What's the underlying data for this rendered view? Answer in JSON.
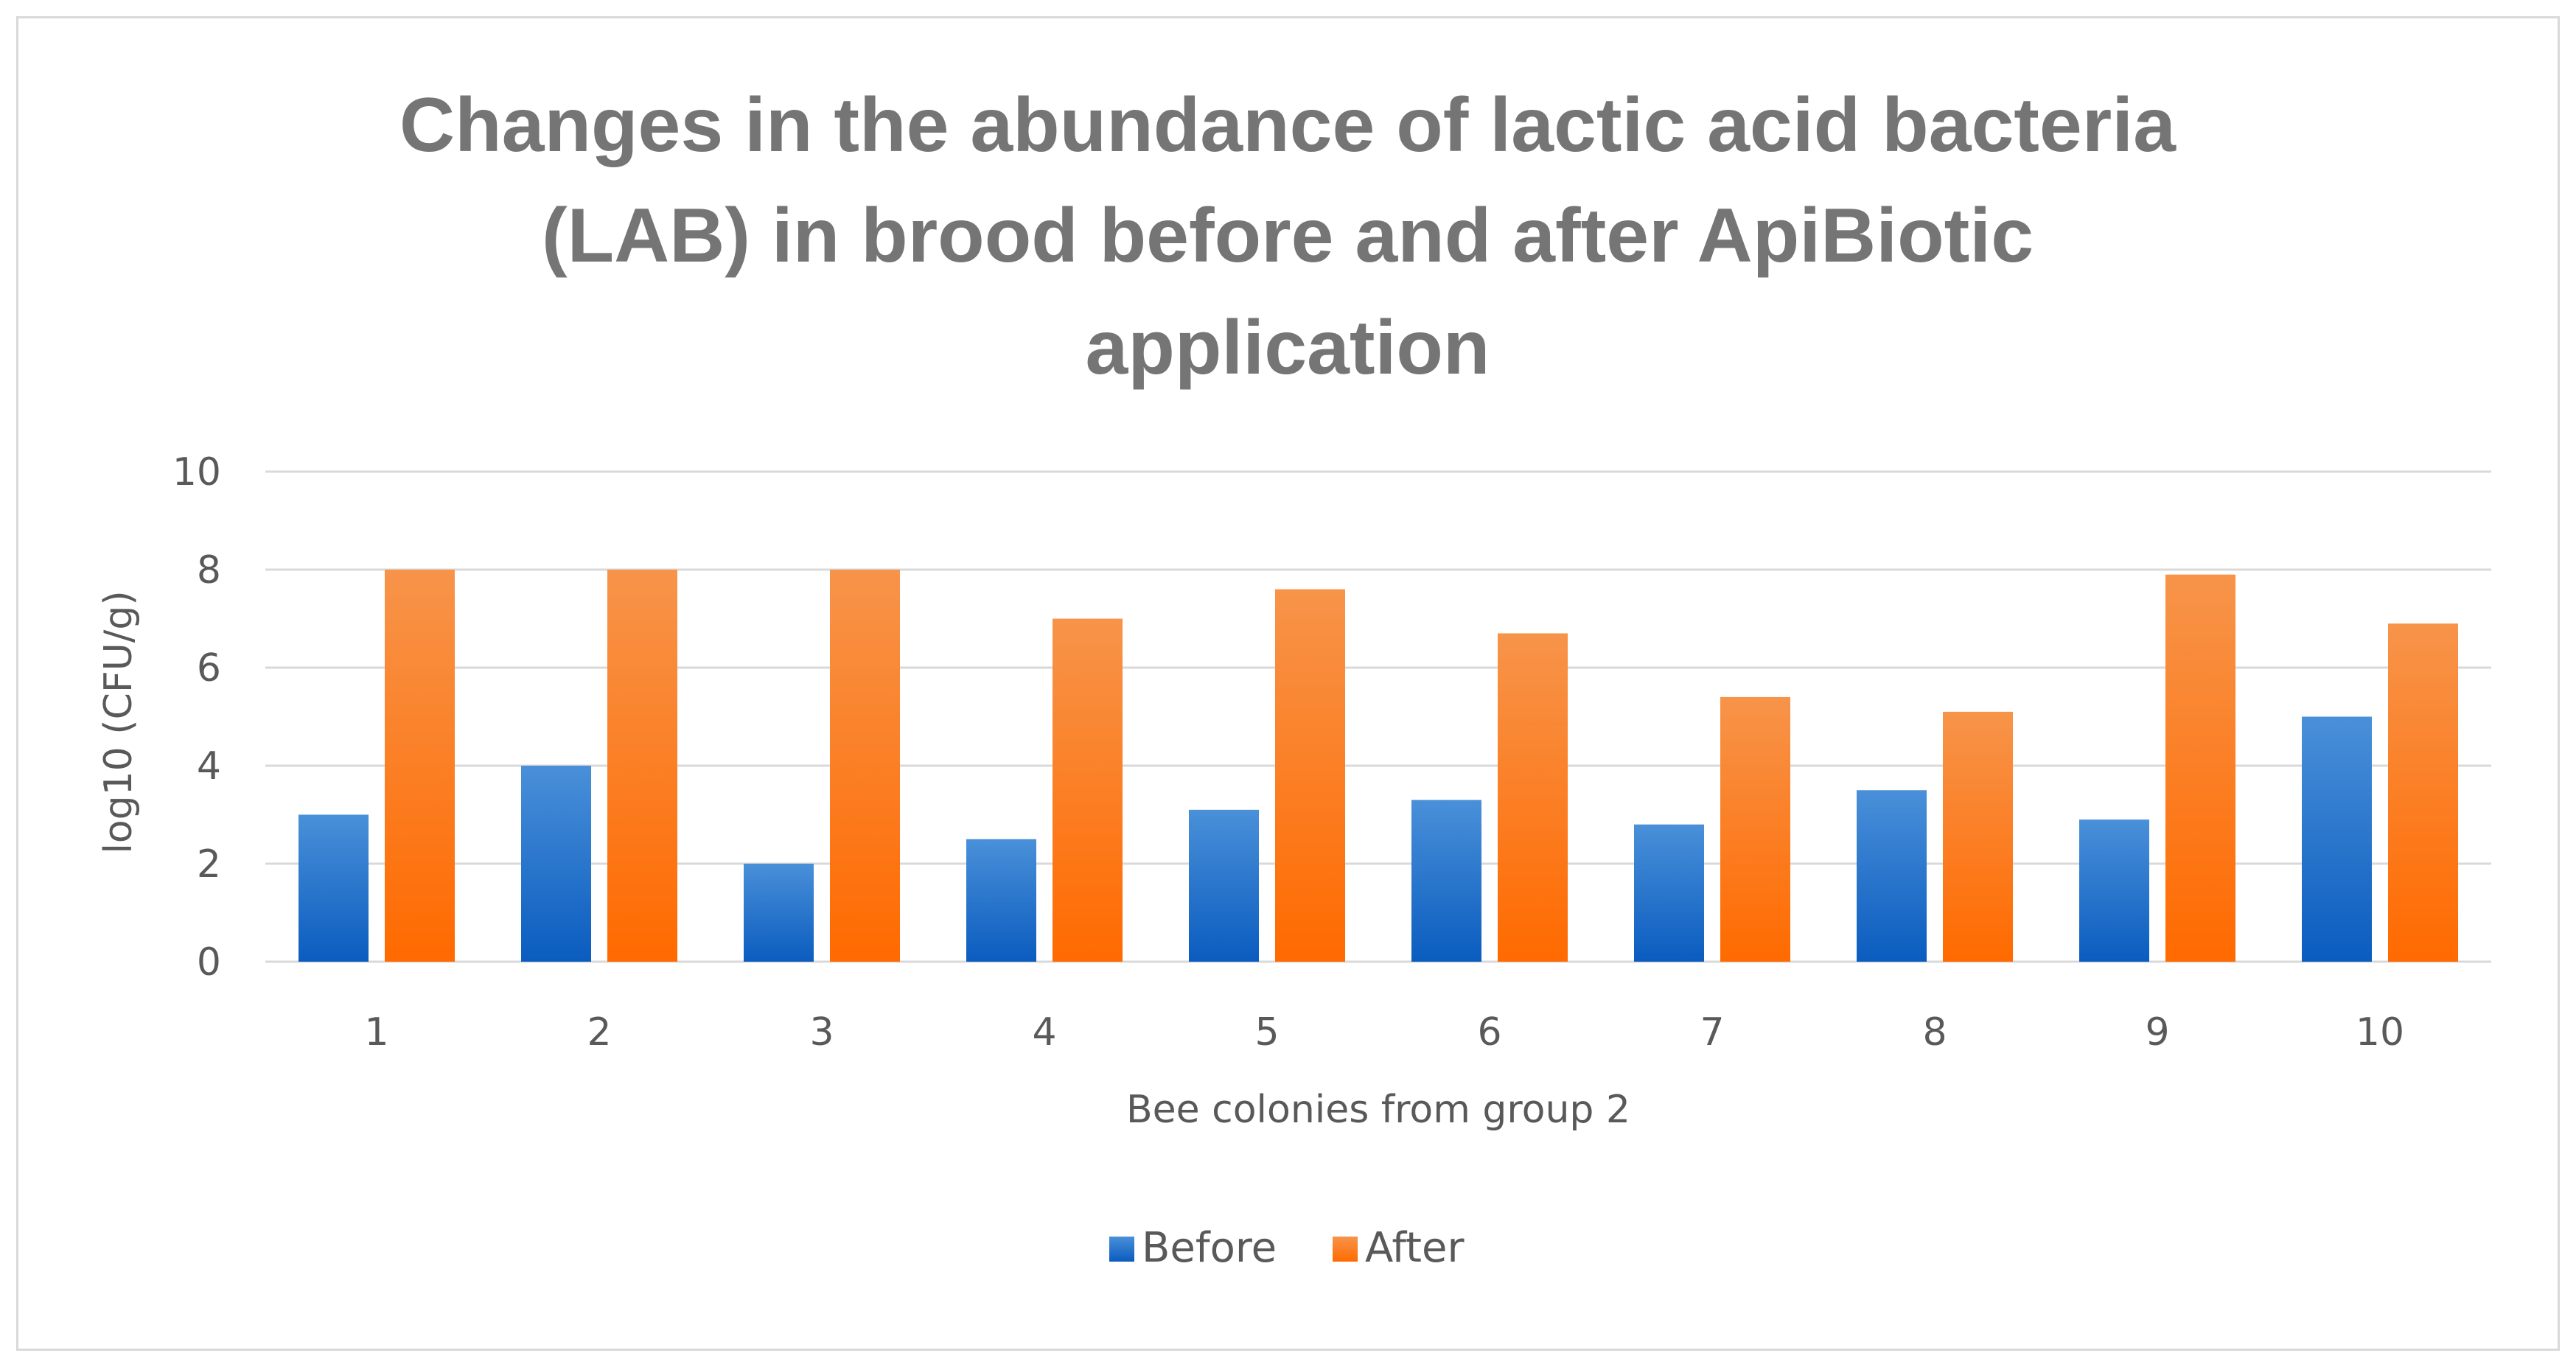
{
  "chart_data": {
    "type": "bar",
    "title": "Changes in the abundance of lactic acid bacteria (LAB) in brood before and after ApiBiotic application",
    "title_lines": [
      "Changes in the abundance of lactic acid bacteria",
      "(LAB) in brood before and after ApiBiotic",
      "application"
    ],
    "xlabel": "Bee colonies from group 2",
    "ylabel": "log10 (CFU/g)",
    "categories": [
      "1",
      "2",
      "3",
      "4",
      "5",
      "6",
      "7",
      "8",
      "9",
      "10"
    ],
    "series": [
      {
        "name": "Before",
        "color": "#1565c0",
        "values": [
          3.0,
          4.0,
          2.0,
          2.5,
          3.1,
          3.3,
          2.8,
          3.5,
          2.9,
          5.0
        ]
      },
      {
        "name": "After",
        "color": "#f57c00",
        "values": [
          8.0,
          8.0,
          8.0,
          7.0,
          7.6,
          6.7,
          5.4,
          5.1,
          7.9,
          6.9
        ]
      }
    ],
    "ylim": [
      0,
      10
    ],
    "yticks": [
      "0",
      "2",
      "4",
      "6",
      "8",
      "10"
    ],
    "grid": true,
    "legend_position": "bottom"
  }
}
